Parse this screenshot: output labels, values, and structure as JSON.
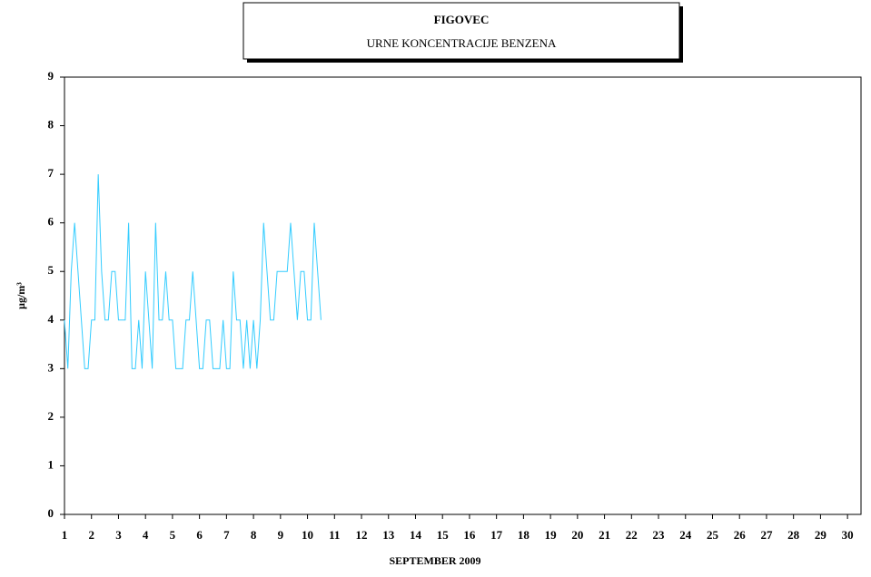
{
  "chart_data": {
    "type": "line",
    "title": "FIGOVEC",
    "subtitle": "URNE KONCENTRACIJE BENZENA",
    "xlabel": "SEPTEMBER 2009",
    "ylabel": "μg/m³",
    "x": [
      1,
      1.125,
      1.25,
      1.375,
      1.5,
      1.625,
      1.75,
      1.875,
      2,
      2.125,
      2.25,
      2.375,
      2.5,
      2.625,
      2.75,
      2.875,
      3,
      3.125,
      3.25,
      3.375,
      3.5,
      3.625,
      3.75,
      3.875,
      4,
      4.125,
      4.25,
      4.375,
      4.5,
      4.625,
      4.75,
      4.875,
      5,
      5.125,
      5.25,
      5.375,
      5.5,
      5.625,
      5.75,
      5.875,
      6,
      6.125,
      6.25,
      6.375,
      6.5,
      6.625,
      6.75,
      6.875,
      7,
      7.125,
      7.25,
      7.375,
      7.5,
      7.625,
      7.75,
      7.875,
      8,
      8.125,
      8.25,
      8.375,
      8.5,
      8.625,
      8.75,
      8.875,
      9,
      9.125,
      9.25,
      9.375,
      9.5,
      9.625,
      9.75,
      9.875,
      10,
      10.125,
      10.25,
      10.375,
      10.5
    ],
    "series": [
      {
        "color": "#33ccff",
        "values": [
          4,
          3,
          5,
          6,
          5,
          4,
          3,
          3,
          4,
          4,
          7,
          5,
          4,
          4,
          5,
          5,
          4,
          4,
          4,
          6,
          3,
          3,
          4,
          3,
          5,
          4,
          3,
          6,
          4,
          4,
          5,
          4,
          4,
          3,
          3,
          3,
          4,
          4,
          5,
          4,
          3,
          3,
          4,
          4,
          3,
          3,
          3,
          4,
          3,
          3,
          5,
          4,
          4,
          3,
          4,
          3,
          4,
          3,
          4,
          6,
          5,
          4,
          4,
          5,
          5,
          5,
          5,
          6,
          5,
          4,
          5,
          5,
          4,
          4,
          6,
          5,
          4
        ]
      }
    ],
    "xlim": [
      1,
      30.5
    ],
    "xticks": [
      1,
      2,
      3,
      4,
      5,
      6,
      7,
      8,
      9,
      10,
      11,
      12,
      13,
      14,
      15,
      16,
      17,
      18,
      19,
      20,
      21,
      22,
      23,
      24,
      25,
      26,
      27,
      28,
      29,
      30
    ],
    "ylim": [
      0,
      9
    ],
    "yticks": [
      0,
      1,
      2,
      3,
      4,
      5,
      6,
      7,
      8,
      9
    ],
    "grid": false
  }
}
